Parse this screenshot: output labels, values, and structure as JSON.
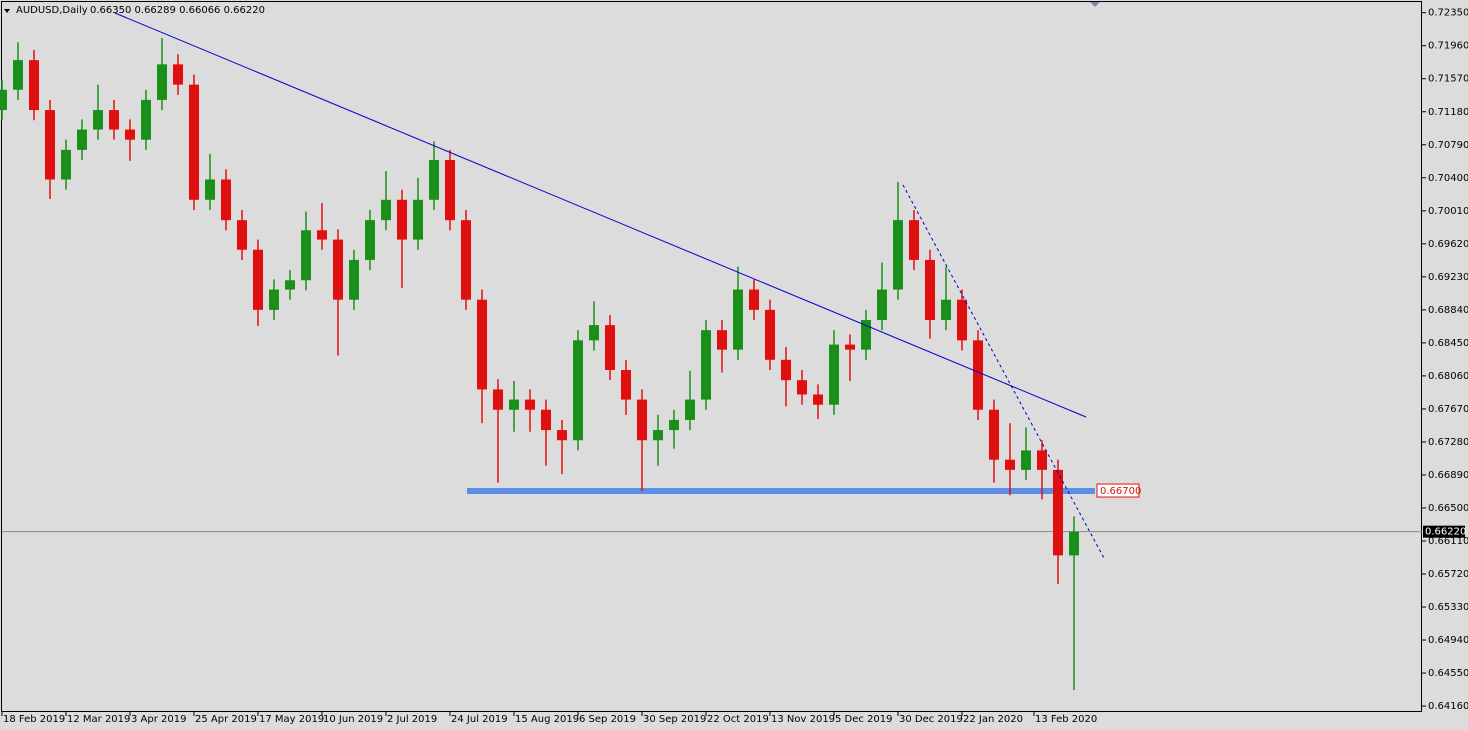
{
  "chart_data": {
    "type": "candlestick",
    "title": "AUDUSD,Daily",
    "quote": "0.66350 0.66289 0.66066 0.66220",
    "bull_color": "#1a8f1a",
    "bear_color": "#e01010",
    "x": [
      0,
      4,
      8,
      12,
      16,
      20,
      24,
      28,
      32,
      36,
      40,
      44,
      48,
      52,
      56,
      60,
      64,
      68,
      72,
      76,
      80,
      84,
      88,
      92,
      96,
      100,
      104,
      108,
      112,
      116,
      120,
      124,
      128,
      132,
      136,
      140,
      144,
      148,
      152,
      156,
      160,
      164,
      168,
      172,
      176,
      180,
      184,
      188,
      192,
      196,
      200,
      204,
      208,
      212,
      216,
      220,
      224,
      228,
      232,
      236,
      240,
      244,
      248,
      252,
      256,
      260,
      264,
      268
    ],
    "open": [
      0.712,
      0.7144,
      0.7179,
      0.712,
      0.7038,
      0.7073,
      0.7097,
      0.712,
      0.7097,
      0.7085,
      0.7132,
      0.7174,
      0.715,
      0.7014,
      0.7038,
      0.699,
      0.6955,
      0.6884,
      0.6908,
      0.6919,
      0.6978,
      0.6967,
      0.6896,
      0.6943,
      0.699,
      0.7014,
      0.6967,
      0.7014,
      0.7061,
      0.699,
      0.6896,
      0.679,
      0.6766,
      0.6778,
      0.6766,
      0.6742,
      0.673,
      0.6848,
      0.6866,
      0.6813,
      0.6778,
      0.673,
      0.6742,
      0.6754,
      0.6778,
      0.686,
      0.6837,
      0.6908,
      0.6884,
      0.6825,
      0.6801,
      0.6784,
      0.6772,
      0.6843,
      0.6837,
      0.6872,
      0.6908,
      0.699,
      0.6943,
      0.6872,
      0.6896,
      0.6848,
      0.6766,
      0.6707,
      0.6695,
      0.6718,
      0.6695,
      0.6594
    ],
    "high": [
      0.7156,
      0.72,
      0.7191,
      0.7132,
      0.7085,
      0.7109,
      0.715,
      0.7132,
      0.7109,
      0.7144,
      0.7205,
      0.7186,
      0.7162,
      0.7068,
      0.705,
      0.7002,
      0.6967,
      0.692,
      0.6931,
      0.7,
      0.701,
      0.6979,
      0.6955,
      0.7002,
      0.7048,
      0.7026,
      0.704,
      0.7083,
      0.7073,
      0.7002,
      0.6908,
      0.6802,
      0.68,
      0.679,
      0.6778,
      0.6754,
      0.686,
      0.6894,
      0.6878,
      0.6825,
      0.679,
      0.676,
      0.6766,
      0.6812,
      0.6872,
      0.6872,
      0.6935,
      0.692,
      0.6896,
      0.684,
      0.6813,
      0.6796,
      0.686,
      0.6855,
      0.6884,
      0.694,
      0.7035,
      0.7002,
      0.6955,
      0.6935,
      0.6908,
      0.686,
      0.6778,
      0.675,
      0.6745,
      0.673,
      0.6707,
      0.664
    ],
    "low": [
      0.7108,
      0.7132,
      0.7108,
      0.7015,
      0.7026,
      0.7061,
      0.7085,
      0.7085,
      0.706,
      0.7073,
      0.712,
      0.7138,
      0.7002,
      0.7002,
      0.6978,
      0.6943,
      0.6865,
      0.6872,
      0.6896,
      0.6907,
      0.6955,
      0.683,
      0.6884,
      0.6931,
      0.6978,
      0.691,
      0.6955,
      0.7002,
      0.6978,
      0.6884,
      0.675,
      0.668,
      0.674,
      0.674,
      0.67,
      0.669,
      0.6718,
      0.6836,
      0.6801,
      0.676,
      0.667,
      0.67,
      0.672,
      0.6742,
      0.6766,
      0.681,
      0.6825,
      0.6872,
      0.6813,
      0.677,
      0.6772,
      0.6755,
      0.676,
      0.68,
      0.6825,
      0.686,
      0.6896,
      0.6931,
      0.685,
      0.686,
      0.6836,
      0.6754,
      0.668,
      0.6665,
      0.6683,
      0.666,
      0.656,
      0.6435
    ],
    "close": [
      0.7144,
      0.7179,
      0.712,
      0.7038,
      0.7073,
      0.7097,
      0.712,
      0.7097,
      0.7085,
      0.7132,
      0.7174,
      0.715,
      0.7014,
      0.7038,
      0.699,
      0.6955,
      0.6884,
      0.6908,
      0.6919,
      0.6978,
      0.6967,
      0.6896,
      0.6943,
      0.699,
      0.7014,
      0.6967,
      0.7014,
      0.7061,
      0.699,
      0.6896,
      0.679,
      0.6766,
      0.6778,
      0.6766,
      0.6742,
      0.673,
      0.6848,
      0.6866,
      0.6813,
      0.6778,
      0.673,
      0.6742,
      0.6754,
      0.6778,
      0.686,
      0.6837,
      0.6908,
      0.6884,
      0.6825,
      0.6801,
      0.6784,
      0.6772,
      0.6843,
      0.6837,
      0.6872,
      0.6908,
      0.699,
      0.6943,
      0.6872,
      0.6896,
      0.6848,
      0.6766,
      0.6707,
      0.6695,
      0.6718,
      0.6695,
      0.6594,
      0.6622
    ],
    "xlim": [
      0,
      355
    ],
    "xticks": [
      {
        "value": 0,
        "label": "18 Feb 2019"
      },
      {
        "value": 16,
        "label": "12 Mar 2019"
      },
      {
        "value": 32,
        "label": "3 Apr 2019"
      },
      {
        "value": 48,
        "label": "25 Apr 2019"
      },
      {
        "value": 64,
        "label": "17 May 2019"
      },
      {
        "value": 80,
        "label": "10 Jun 2019"
      },
      {
        "value": 96,
        "label": "2 Jul 2019"
      },
      {
        "value": 112,
        "label": "24 Jul 2019"
      },
      {
        "value": 128,
        "label": "15 Aug 2019"
      },
      {
        "value": 144,
        "label": "6 Sep 2019"
      },
      {
        "value": 160,
        "label": "30 Sep 2019"
      },
      {
        "value": 176,
        "label": "22 Oct 2019"
      },
      {
        "value": 192,
        "label": "13 Nov 2019"
      },
      {
        "value": 208,
        "label": "5 Dec 2019"
      },
      {
        "value": 224,
        "label": "30 Dec 2019"
      },
      {
        "value": 240,
        "label": "22 Jan 2020"
      },
      {
        "value": 258,
        "label": "13 Feb 2020"
      }
    ],
    "ylim": [
      0.6409,
      0.725
    ],
    "yticks": [
      {
        "value": 0.7235,
        "label": "0.72350"
      },
      {
        "value": 0.7196,
        "label": "0.71960"
      },
      {
        "value": 0.7157,
        "label": "0.71570"
      },
      {
        "value": 0.7118,
        "label": "0.71180"
      },
      {
        "value": 0.7079,
        "label": "0.70790"
      },
      {
        "value": 0.704,
        "label": "0.70400"
      },
      {
        "value": 0.7001,
        "label": "0.70010"
      },
      {
        "value": 0.6962,
        "label": "0.69620"
      },
      {
        "value": 0.6923,
        "label": "0.69230"
      },
      {
        "value": 0.6884,
        "label": "0.68840"
      },
      {
        "value": 0.6845,
        "label": "0.68450"
      },
      {
        "value": 0.6806,
        "label": "0.68060"
      },
      {
        "value": 0.6767,
        "label": "0.67670"
      },
      {
        "value": 0.6728,
        "label": "0.67280"
      },
      {
        "value": 0.6689,
        "label": "0.66890"
      },
      {
        "value": 0.665,
        "label": "0.66500"
      },
      {
        "value": 0.6611,
        "label": "0.66110"
      },
      {
        "value": 0.6572,
        "label": "0.65720"
      },
      {
        "value": 0.6533,
        "label": "0.65330"
      },
      {
        "value": 0.6494,
        "label": "0.64940"
      },
      {
        "value": 0.6455,
        "label": "0.64550"
      },
      {
        "value": 0.6416,
        "label": "0.64160"
      }
    ],
    "support": {
      "value": 0.667,
      "label": "0.66700"
    },
    "last_price": {
      "value": 0.6622,
      "label": "0.66220"
    }
  }
}
